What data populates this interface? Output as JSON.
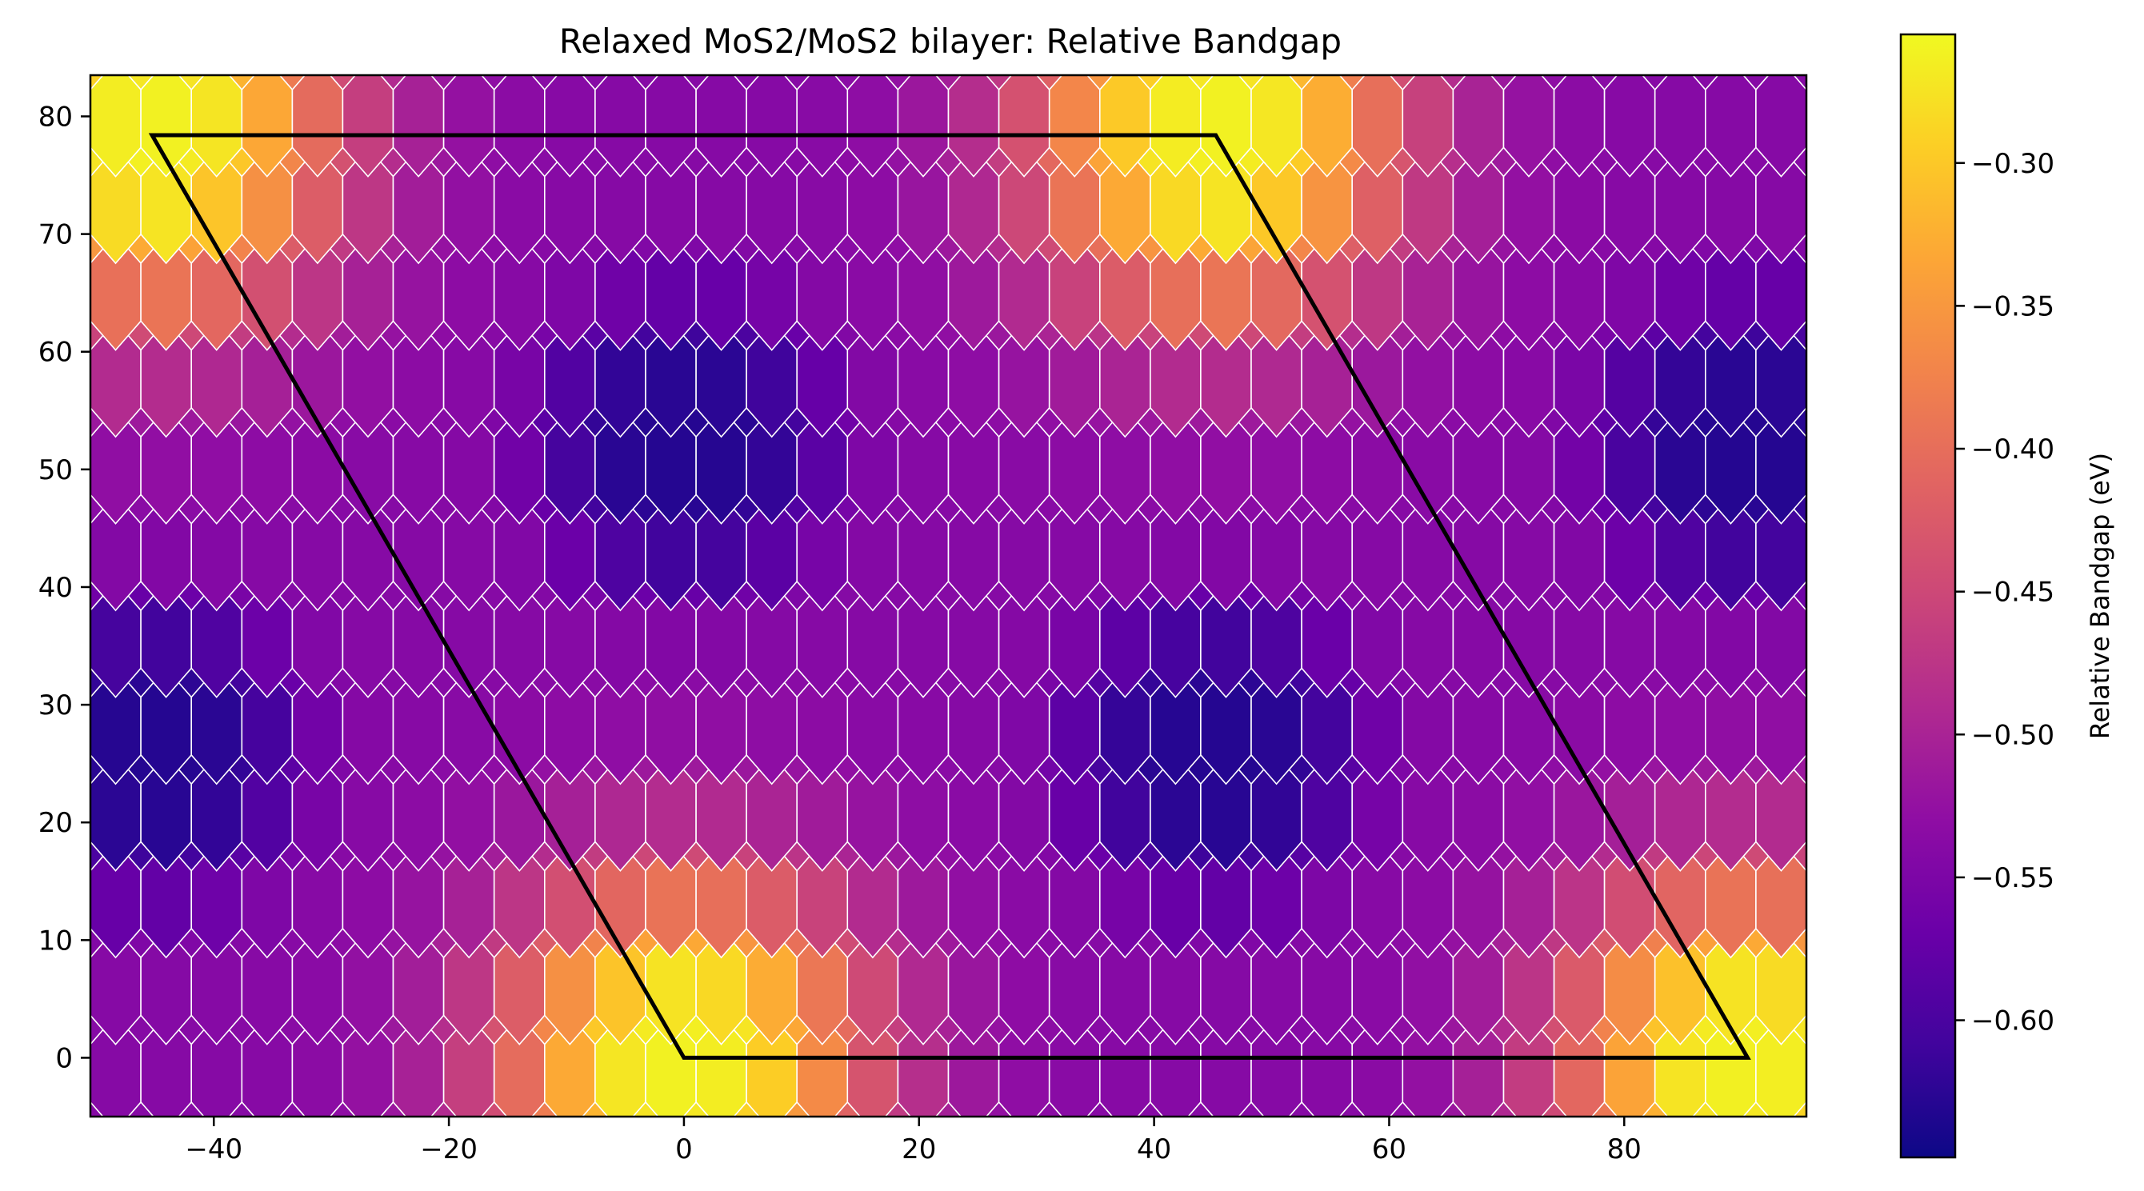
{
  "chart_data": {
    "type": "heatmap",
    "title": "Relaxed MoS2/MoS2 bilayer: Relative Bandgap",
    "xlabel": "",
    "ylabel": "",
    "xlim": [
      -50.5,
      95.5
    ],
    "ylim": [
      -5,
      83.5
    ],
    "x_ticks": [
      -40,
      -20,
      0,
      20,
      40,
      60,
      80
    ],
    "y_ticks": [
      0,
      10,
      20,
      30,
      40,
      50,
      60,
      70,
      80
    ],
    "x_tick_labels": [
      "−40",
      "−20",
      "0",
      "20",
      "40",
      "60",
      "80"
    ],
    "y_tick_labels": [
      "0",
      "10",
      "20",
      "30",
      "40",
      "50",
      "60",
      "70",
      "80"
    ],
    "colorbar": {
      "label": "Relative Bandgap (eV)",
      "colormap": "plasma",
      "range": [
        -0.648,
        -0.255
      ],
      "ticks": [
        -0.3,
        -0.35,
        -0.4,
        -0.45,
        -0.5,
        -0.55,
        -0.6
      ],
      "tick_labels": [
        "−0.30",
        "−0.35",
        "−0.40",
        "−0.45",
        "−0.50",
        "−0.55",
        "−0.60"
      ]
    },
    "hexbin": {
      "gridsize_x": 34,
      "x_min": -50.5,
      "x_max": 95.5,
      "y_min": -5,
      "y_max": 83.5,
      "edge_color": "#ffffff",
      "background_value": -0.54
    },
    "lattice": {
      "a1": [
        90.5,
        0
      ],
      "a2": [
        -45.25,
        78.4
      ],
      "hot_value": -0.27,
      "low_value": -0.63,
      "mid_value": -0.54,
      "hot_sigma": 11,
      "low_sigma": 13
    },
    "unit_cell": {
      "vertices": [
        [
          0,
          0
        ],
        [
          90.5,
          0
        ],
        [
          45.25,
          78.4
        ],
        [
          -45.25,
          78.4
        ]
      ],
      "color": "#000000"
    }
  }
}
